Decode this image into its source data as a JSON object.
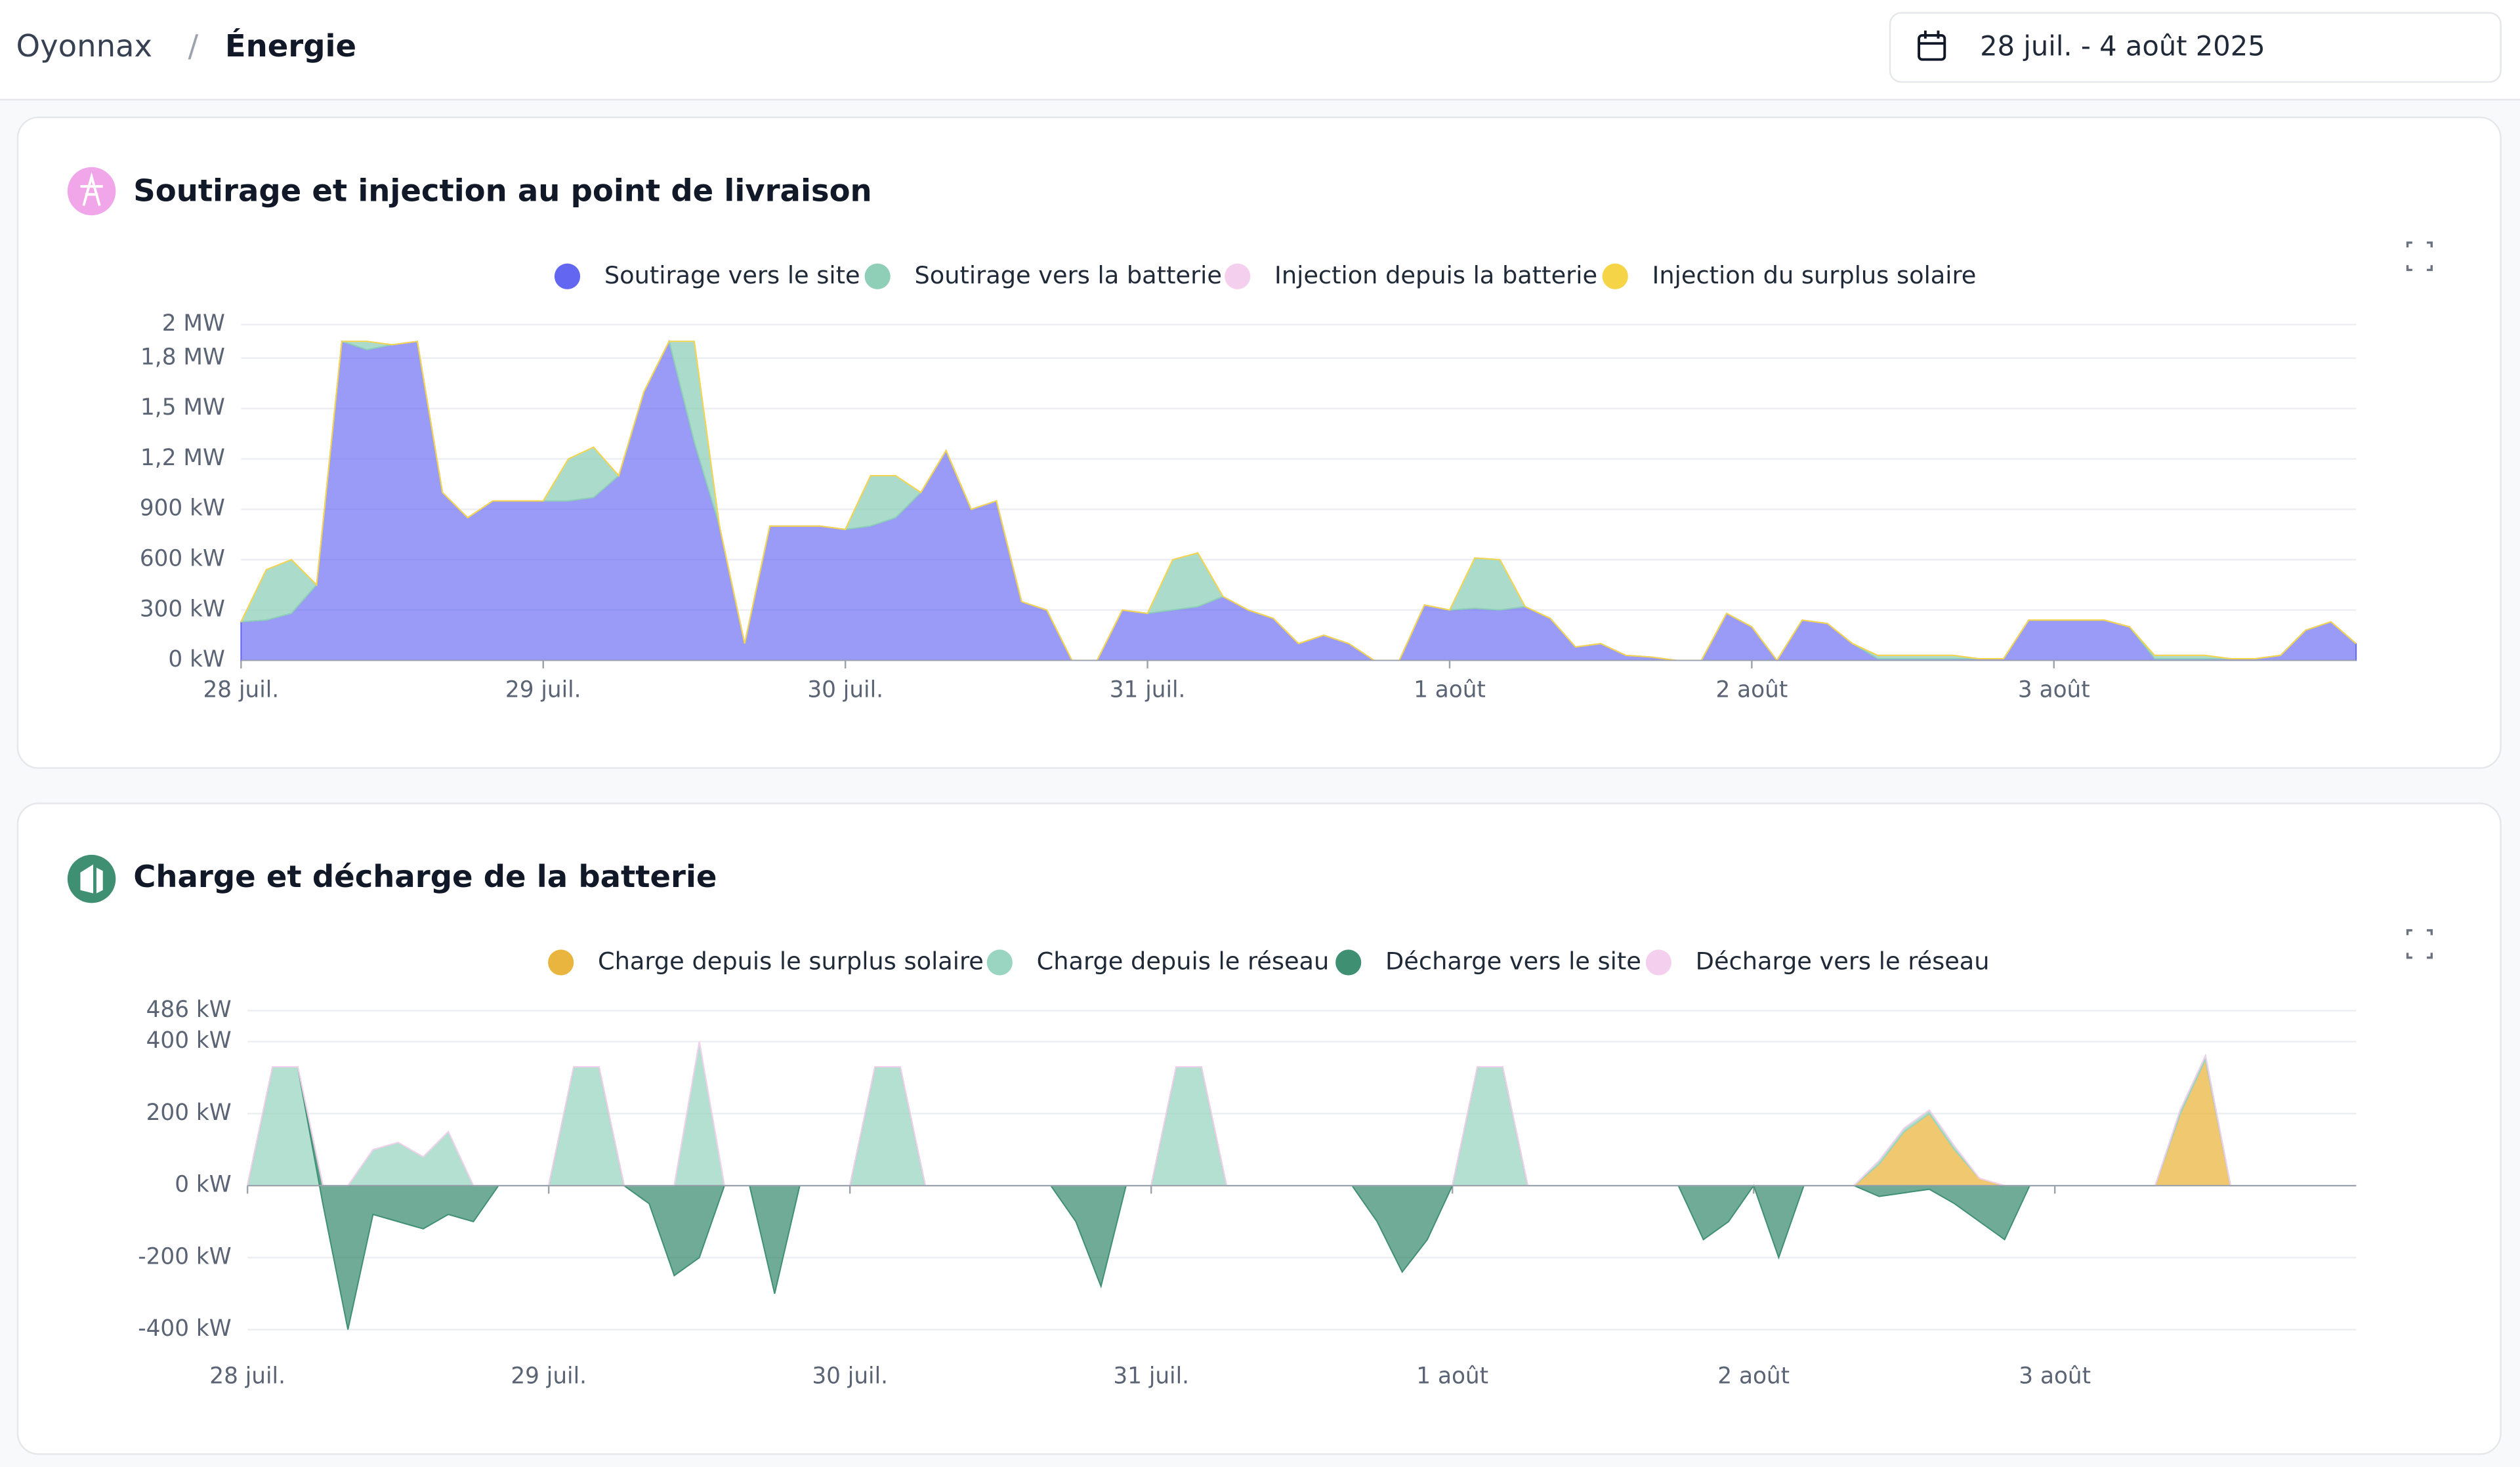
{
  "header": {
    "site": "Oyonnax",
    "page": "Énergie",
    "date_range": "28 juil. - 4 août 2025"
  },
  "chart_data": [
    {
      "type": "area",
      "stacked": true,
      "title": "Soutirage et injection au point de livraison",
      "x": [
        0,
        2,
        4,
        6,
        8,
        10,
        12,
        14,
        16,
        18,
        20,
        22,
        24,
        26,
        28,
        30,
        32,
        34,
        36,
        38,
        40,
        42,
        44,
        46,
        48,
        50,
        52,
        54,
        56,
        58,
        60,
        62,
        64,
        66,
        68,
        70,
        72,
        74,
        76,
        78,
        80,
        82,
        84,
        86,
        88,
        90,
        92,
        94,
        96,
        98,
        100,
        102,
        104,
        106,
        108,
        110,
        112,
        114,
        116,
        118,
        120,
        122,
        124,
        126,
        128,
        130,
        132,
        134,
        136,
        138,
        140,
        142,
        144,
        146,
        148,
        150,
        152,
        154,
        156,
        158,
        160,
        162,
        164,
        166,
        168
      ],
      "xlim": [
        0,
        168
      ],
      "xticks": [
        {
          "value": 0,
          "label": "28 juil."
        },
        {
          "value": 24,
          "label": "29 juil."
        },
        {
          "value": 48,
          "label": "30 juil."
        },
        {
          "value": 72,
          "label": "31 juil."
        },
        {
          "value": 96,
          "label": "1 août"
        },
        {
          "value": 120,
          "label": "2 août"
        },
        {
          "value": 144,
          "label": "3 août"
        }
      ],
      "ylim": [
        0,
        2000
      ],
      "yticks": [
        {
          "value": 0,
          "label": "0 kW"
        },
        {
          "value": 300,
          "label": "300 kW"
        },
        {
          "value": 600,
          "label": "600 kW"
        },
        {
          "value": 900,
          "label": "900 kW"
        },
        {
          "value": 1200,
          "label": "1,2 MW"
        },
        {
          "value": 1500,
          "label": "1,5 MW"
        },
        {
          "value": 1800,
          "label": "1,8 MW"
        },
        {
          "value": 2000,
          "label": "2 MW"
        }
      ],
      "grid": true,
      "series": [
        {
          "name": "Soutirage vers le site",
          "color": "#6366f1",
          "values": [
            230,
            240,
            280,
            450,
            1900,
            1850,
            1880,
            1900,
            1000,
            850,
            950,
            950,
            950,
            950,
            970,
            1100,
            1600,
            1900,
            1300,
            800,
            100,
            800,
            800,
            800,
            780,
            800,
            850,
            1000,
            1250,
            900,
            950,
            350,
            300,
            0,
            0,
            300,
            280,
            300,
            320,
            380,
            300,
            250,
            100,
            150,
            100,
            0,
            0,
            330,
            300,
            310,
            300,
            320,
            250,
            80,
            100,
            30,
            20,
            0,
            0,
            280,
            200,
            0,
            240,
            220,
            100,
            10,
            10,
            10,
            10,
            10,
            10,
            240,
            240,
            240,
            240,
            200,
            10,
            10,
            10,
            10,
            10,
            30,
            180,
            230,
            100
          ]
        },
        {
          "name": "Soutirage vers la batterie",
          "color": "#8fcfb8",
          "values": [
            0,
            300,
            320,
            0,
            0,
            50,
            0,
            0,
            0,
            0,
            0,
            0,
            0,
            250,
            300,
            0,
            0,
            0,
            600,
            0,
            0,
            0,
            0,
            0,
            0,
            300,
            250,
            0,
            0,
            0,
            0,
            0,
            0,
            0,
            0,
            0,
            0,
            300,
            320,
            0,
            0,
            0,
            0,
            0,
            0,
            0,
            0,
            0,
            0,
            300,
            300,
            0,
            0,
            0,
            0,
            0,
            0,
            0,
            0,
            0,
            0,
            0,
            0,
            0,
            0,
            20,
            20,
            20,
            20,
            0,
            0,
            0,
            0,
            0,
            0,
            0,
            20,
            20,
            20,
            0,
            0,
            0,
            0,
            0,
            0
          ]
        },
        {
          "name": "Injection depuis la batterie",
          "color": "#f5d0ee",
          "values": [
            0,
            0,
            0,
            0,
            0,
            0,
            0,
            0,
            0,
            0,
            0,
            0,
            0,
            0,
            0,
            0,
            0,
            0,
            0,
            0,
            0,
            0,
            0,
            0,
            0,
            0,
            0,
            0,
            0,
            0,
            0,
            0,
            0,
            0,
            0,
            0,
            0,
            0,
            0,
            0,
            0,
            0,
            0,
            0,
            0,
            0,
            0,
            0,
            0,
            0,
            0,
            0,
            0,
            0,
            0,
            0,
            0,
            0,
            0,
            0,
            0,
            0,
            0,
            0,
            0,
            0,
            0,
            0,
            0,
            0,
            0,
            0,
            0,
            0,
            0,
            0,
            0,
            0,
            0,
            0,
            0,
            0,
            0,
            0,
            0
          ]
        },
        {
          "name": "Injection du surplus solaire",
          "color": "#f5d547",
          "values": [
            0,
            0,
            0,
            0,
            0,
            0,
            0,
            0,
            0,
            0,
            0,
            0,
            0,
            0,
            0,
            0,
            0,
            0,
            0,
            0,
            0,
            0,
            0,
            0,
            0,
            0,
            0,
            0,
            0,
            0,
            0,
            0,
            0,
            0,
            0,
            0,
            0,
            0,
            0,
            0,
            0,
            0,
            0,
            0,
            0,
            0,
            0,
            0,
            0,
            0,
            0,
            0,
            0,
            0,
            0,
            0,
            0,
            0,
            0,
            0,
            0,
            0,
            0,
            0,
            0,
            0,
            0,
            0,
            0,
            0,
            0,
            0,
            0,
            0,
            0,
            0,
            0,
            0,
            0,
            0,
            0,
            0,
            0,
            0,
            0
          ]
        }
      ]
    },
    {
      "type": "area",
      "stacked": true,
      "title": "Charge et décharge de la batterie",
      "x": [
        0,
        2,
        4,
        6,
        8,
        10,
        12,
        14,
        16,
        18,
        20,
        22,
        24,
        26,
        28,
        30,
        32,
        34,
        36,
        38,
        40,
        42,
        44,
        46,
        48,
        50,
        52,
        54,
        56,
        58,
        60,
        62,
        64,
        66,
        68,
        70,
        72,
        74,
        76,
        78,
        80,
        82,
        84,
        86,
        88,
        90,
        92,
        94,
        96,
        98,
        100,
        102,
        104,
        106,
        108,
        110,
        112,
        114,
        116,
        118,
        120,
        122,
        124,
        126,
        128,
        130,
        132,
        134,
        136,
        138,
        140,
        142,
        144,
        146,
        148,
        150,
        152,
        154,
        156,
        158,
        160,
        162,
        164,
        166,
        168
      ],
      "xlim": [
        0,
        168
      ],
      "xticks": [
        {
          "value": 0,
          "label": "28 juil."
        },
        {
          "value": 24,
          "label": "29 juil."
        },
        {
          "value": 48,
          "label": "30 juil."
        },
        {
          "value": 72,
          "label": "31 juil."
        },
        {
          "value": 96,
          "label": "1 août"
        },
        {
          "value": 120,
          "label": "2 août"
        },
        {
          "value": 144,
          "label": "3 août"
        }
      ],
      "ylim": [
        -420,
        486
      ],
      "yticks": [
        {
          "value": -400,
          "label": "-400 kW"
        },
        {
          "value": -200,
          "label": "-200 kW"
        },
        {
          "value": 0,
          "label": "0 kW"
        },
        {
          "value": 200,
          "label": "200 kW"
        },
        {
          "value": 400,
          "label": "400 kW"
        },
        {
          "value": 486,
          "label": "486 kW"
        }
      ],
      "grid": true,
      "series": [
        {
          "name": "Charge depuis le surplus solaire",
          "color": "#e9b53f",
          "values": [
            0,
            0,
            0,
            0,
            0,
            0,
            0,
            0,
            0,
            0,
            0,
            0,
            0,
            0,
            0,
            0,
            0,
            0,
            0,
            0,
            0,
            0,
            0,
            0,
            0,
            0,
            0,
            0,
            0,
            0,
            0,
            0,
            0,
            0,
            0,
            0,
            0,
            0,
            0,
            0,
            0,
            0,
            0,
            0,
            0,
            0,
            0,
            0,
            0,
            0,
            0,
            0,
            0,
            0,
            0,
            0,
            0,
            0,
            0,
            0,
            0,
            0,
            0,
            0,
            0,
            60,
            150,
            200,
            100,
            20,
            0,
            0,
            0,
            0,
            0,
            0,
            0,
            200,
            350,
            0,
            0,
            0,
            0,
            0,
            0
          ]
        },
        {
          "name": "Charge depuis le réseau",
          "color": "#99d5c0",
          "values": [
            0,
            330,
            330,
            0,
            0,
            100,
            120,
            80,
            150,
            0,
            0,
            0,
            0,
            330,
            330,
            0,
            0,
            0,
            400,
            0,
            0,
            0,
            0,
            0,
            0,
            330,
            330,
            0,
            0,
            0,
            0,
            0,
            0,
            0,
            0,
            0,
            0,
            330,
            330,
            0,
            0,
            0,
            0,
            0,
            0,
            0,
            0,
            0,
            0,
            330,
            330,
            0,
            0,
            0,
            0,
            0,
            0,
            0,
            0,
            0,
            0,
            0,
            0,
            0,
            0,
            10,
            10,
            10,
            10,
            0,
            0,
            0,
            0,
            0,
            0,
            0,
            0,
            10,
            10,
            0,
            0,
            0,
            0,
            0,
            0
          ]
        },
        {
          "name": "Décharge vers le site",
          "color": "#3f8f73",
          "values": [
            0,
            0,
            0,
            -50,
            -400,
            -80,
            -100,
            -120,
            -80,
            -100,
            0,
            0,
            0,
            0,
            0,
            0,
            -50,
            -250,
            -200,
            0,
            0,
            -300,
            0,
            0,
            0,
            0,
            0,
            0,
            0,
            0,
            0,
            0,
            0,
            -100,
            -280,
            0,
            0,
            0,
            0,
            0,
            0,
            0,
            0,
            0,
            0,
            -100,
            -240,
            -150,
            0,
            0,
            0,
            0,
            0,
            0,
            0,
            0,
            0,
            0,
            -150,
            -100,
            0,
            -200,
            0,
            0,
            0,
            -30,
            -20,
            -10,
            -50,
            -100,
            -150,
            0,
            0,
            0,
            0,
            0,
            0,
            0,
            0,
            0,
            0,
            0,
            0,
            0,
            0
          ]
        },
        {
          "name": "Décharge vers le réseau",
          "color": "#f5d0ee",
          "values": [
            0,
            0,
            0,
            0,
            0,
            0,
            0,
            0,
            0,
            0,
            0,
            0,
            0,
            0,
            0,
            0,
            0,
            0,
            0,
            0,
            0,
            0,
            0,
            0,
            0,
            0,
            0,
            0,
            0,
            0,
            0,
            0,
            0,
            0,
            0,
            0,
            0,
            0,
            0,
            0,
            0,
            0,
            0,
            0,
            0,
            0,
            0,
            0,
            0,
            0,
            0,
            0,
            0,
            0,
            0,
            0,
            0,
            0,
            0,
            0,
            0,
            0,
            0,
            0,
            0,
            0,
            0,
            0,
            0,
            0,
            0,
            0,
            0,
            0,
            0,
            0,
            0,
            0,
            0,
            0,
            0,
            0,
            0,
            0,
            0
          ]
        }
      ]
    }
  ]
}
